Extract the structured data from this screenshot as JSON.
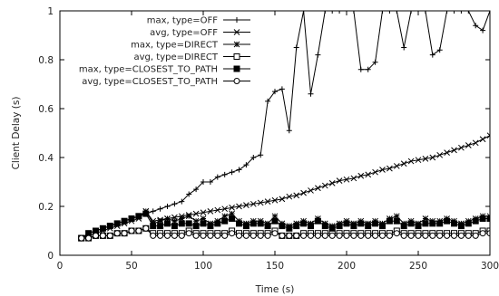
{
  "chart_data": {
    "type": "line",
    "title": "",
    "xlabel": "Time (s)",
    "ylabel": "Client Delay (s)",
    "xlim": [
      0,
      300
    ],
    "ylim": [
      0,
      1
    ],
    "x_ticks": [
      0,
      50,
      100,
      150,
      200,
      250,
      300
    ],
    "y_ticks": [
      0,
      0.2,
      0.4,
      0.6,
      0.8,
      1
    ],
    "x_tick_labels": [
      "0",
      "50",
      "100",
      "150",
      "200",
      "250",
      "300"
    ],
    "y_tick_labels": [
      "0",
      "0.2",
      "0.4",
      "0.6",
      "0.8",
      "1"
    ],
    "grid": false,
    "legend_position": "top-right",
    "series": [
      {
        "name": "max, type=OFF",
        "marker": "plus",
        "x": [
          15,
          20,
          25,
          30,
          35,
          40,
          45,
          50,
          55,
          60,
          65,
          70,
          75,
          80,
          85,
          90,
          95,
          100,
          105,
          110,
          115,
          120,
          125,
          130,
          135,
          140,
          145,
          150,
          155,
          160,
          165,
          170,
          175,
          180,
          185,
          190,
          195,
          200,
          205,
          210,
          215,
          220,
          225,
          230,
          235,
          240,
          245,
          250,
          255,
          260,
          265,
          270,
          275,
          280,
          285,
          290,
          295,
          300
        ],
        "y": [
          0.07,
          0.09,
          0.1,
          0.11,
          0.12,
          0.13,
          0.14,
          0.15,
          0.16,
          0.17,
          0.18,
          0.19,
          0.2,
          0.21,
          0.22,
          0.25,
          0.27,
          0.3,
          0.3,
          0.32,
          0.33,
          0.34,
          0.35,
          0.37,
          0.4,
          0.41,
          0.63,
          0.67,
          0.68,
          0.51,
          0.85,
          1.0,
          0.66,
          0.82,
          1.0,
          1.0,
          1.0,
          1.0,
          1.0,
          0.76,
          0.76,
          0.79,
          1.0,
          1.0,
          1.0,
          0.85,
          1.0,
          1.0,
          1.0,
          0.82,
          0.84,
          1.0,
          1.0,
          1.0,
          1.0,
          0.94,
          0.92,
          1.0
        ]
      },
      {
        "name": "avg, type=OFF",
        "marker": "cross",
        "x": [
          15,
          20,
          25,
          30,
          35,
          40,
          45,
          50,
          55,
          60,
          65,
          70,
          75,
          80,
          85,
          90,
          95,
          100,
          105,
          110,
          115,
          120,
          125,
          130,
          135,
          140,
          145,
          150,
          155,
          160,
          165,
          170,
          175,
          180,
          185,
          190,
          195,
          200,
          205,
          210,
          215,
          220,
          225,
          230,
          235,
          240,
          245,
          250,
          255,
          260,
          265,
          270,
          275,
          280,
          285,
          290,
          295,
          300
        ],
        "y": [
          0.07,
          0.08,
          0.09,
          0.1,
          0.11,
          0.12,
          0.13,
          0.14,
          0.15,
          0.18,
          0.14,
          0.145,
          0.15,
          0.155,
          0.16,
          0.165,
          0.17,
          0.175,
          0.18,
          0.185,
          0.19,
          0.195,
          0.2,
          0.205,
          0.21,
          0.215,
          0.22,
          0.225,
          0.23,
          0.24,
          0.245,
          0.255,
          0.265,
          0.275,
          0.285,
          0.295,
          0.305,
          0.31,
          0.315,
          0.325,
          0.33,
          0.34,
          0.35,
          0.355,
          0.365,
          0.375,
          0.385,
          0.39,
          0.395,
          0.4,
          0.41,
          0.42,
          0.43,
          0.44,
          0.45,
          0.46,
          0.475,
          0.49
        ]
      },
      {
        "name": "max, type=DIRECT",
        "marker": "star",
        "x": [
          15,
          20,
          25,
          30,
          35,
          40,
          45,
          50,
          55,
          60,
          65,
          70,
          75,
          80,
          85,
          90,
          95,
          100,
          105,
          110,
          115,
          120,
          125,
          130,
          135,
          140,
          145,
          150,
          155,
          160,
          165,
          170,
          175,
          180,
          185,
          190,
          195,
          200,
          205,
          210,
          215,
          220,
          225,
          230,
          235,
          240,
          245,
          250,
          255,
          260,
          265,
          270,
          275,
          280,
          285,
          290,
          295,
          300
        ],
        "y": [
          0.07,
          0.09,
          0.1,
          0.11,
          0.12,
          0.13,
          0.14,
          0.15,
          0.16,
          0.18,
          0.13,
          0.14,
          0.15,
          0.14,
          0.15,
          0.16,
          0.14,
          0.15,
          0.13,
          0.14,
          0.16,
          0.17,
          0.14,
          0.13,
          0.14,
          0.14,
          0.13,
          0.16,
          0.13,
          0.12,
          0.13,
          0.14,
          0.13,
          0.15,
          0.13,
          0.12,
          0.13,
          0.14,
          0.13,
          0.14,
          0.13,
          0.14,
          0.13,
          0.15,
          0.16,
          0.13,
          0.14,
          0.13,
          0.15,
          0.14,
          0.14,
          0.15,
          0.14,
          0.13,
          0.14,
          0.15,
          0.16,
          0.16
        ]
      },
      {
        "name": "avg, type=DIRECT",
        "marker": "square-open",
        "x": [
          15,
          20,
          25,
          30,
          35,
          40,
          45,
          50,
          55,
          60,
          65,
          70,
          75,
          80,
          85,
          90,
          95,
          100,
          105,
          110,
          115,
          120,
          125,
          130,
          135,
          140,
          145,
          150,
          155,
          160,
          165,
          170,
          175,
          180,
          185,
          190,
          195,
          200,
          205,
          210,
          215,
          220,
          225,
          230,
          235,
          240,
          245,
          250,
          255,
          260,
          265,
          270,
          275,
          280,
          285,
          290,
          295,
          300
        ],
        "y": [
          0.07,
          0.07,
          0.08,
          0.08,
          0.08,
          0.09,
          0.09,
          0.1,
          0.1,
          0.11,
          0.09,
          0.09,
          0.09,
          0.09,
          0.09,
          0.1,
          0.09,
          0.09,
          0.09,
          0.09,
          0.09,
          0.1,
          0.09,
          0.09,
          0.09,
          0.09,
          0.09,
          0.1,
          0.08,
          0.08,
          0.08,
          0.09,
          0.09,
          0.09,
          0.09,
          0.09,
          0.09,
          0.09,
          0.09,
          0.09,
          0.09,
          0.09,
          0.09,
          0.09,
          0.1,
          0.09,
          0.09,
          0.09,
          0.09,
          0.09,
          0.09,
          0.09,
          0.09,
          0.09,
          0.09,
          0.09,
          0.1,
          0.1
        ]
      },
      {
        "name": "max, type=CLOSEST_TO_PATH",
        "marker": "square-filled",
        "x": [
          15,
          20,
          25,
          30,
          35,
          40,
          45,
          50,
          55,
          60,
          65,
          70,
          75,
          80,
          85,
          90,
          95,
          100,
          105,
          110,
          115,
          120,
          125,
          130,
          135,
          140,
          145,
          150,
          155,
          160,
          165,
          170,
          175,
          180,
          185,
          190,
          195,
          200,
          205,
          210,
          215,
          220,
          225,
          230,
          235,
          240,
          245,
          250,
          255,
          260,
          265,
          270,
          275,
          280,
          285,
          290,
          295,
          300
        ],
        "y": [
          0.07,
          0.09,
          0.1,
          0.11,
          0.12,
          0.13,
          0.14,
          0.15,
          0.16,
          0.17,
          0.12,
          0.12,
          0.13,
          0.12,
          0.13,
          0.13,
          0.12,
          0.13,
          0.12,
          0.13,
          0.14,
          0.15,
          0.13,
          0.12,
          0.13,
          0.13,
          0.12,
          0.14,
          0.12,
          0.11,
          0.12,
          0.13,
          0.12,
          0.14,
          0.12,
          0.11,
          0.12,
          0.13,
          0.12,
          0.13,
          0.12,
          0.13,
          0.12,
          0.14,
          0.14,
          0.12,
          0.13,
          0.12,
          0.13,
          0.13,
          0.13,
          0.14,
          0.13,
          0.12,
          0.13,
          0.14,
          0.15,
          0.15
        ]
      },
      {
        "name": "avg, type=CLOSEST_TO_PATH",
        "marker": "circle-open",
        "x": [
          15,
          20,
          25,
          30,
          35,
          40,
          45,
          50,
          55,
          60,
          65,
          70,
          75,
          80,
          85,
          90,
          95,
          100,
          105,
          110,
          115,
          120,
          125,
          130,
          135,
          140,
          145,
          150,
          155,
          160,
          165,
          170,
          175,
          180,
          185,
          190,
          195,
          200,
          205,
          210,
          215,
          220,
          225,
          230,
          235,
          240,
          245,
          250,
          255,
          260,
          265,
          270,
          275,
          280,
          285,
          290,
          295,
          300
        ],
        "y": [
          0.07,
          0.07,
          0.08,
          0.08,
          0.08,
          0.09,
          0.09,
          0.1,
          0.1,
          0.11,
          0.08,
          0.08,
          0.08,
          0.08,
          0.08,
          0.09,
          0.08,
          0.08,
          0.08,
          0.08,
          0.08,
          0.09,
          0.08,
          0.08,
          0.08,
          0.08,
          0.08,
          0.09,
          0.08,
          0.08,
          0.08,
          0.08,
          0.08,
          0.08,
          0.08,
          0.08,
          0.08,
          0.08,
          0.08,
          0.08,
          0.08,
          0.08,
          0.08,
          0.08,
          0.09,
          0.08,
          0.08,
          0.08,
          0.08,
          0.08,
          0.08,
          0.08,
          0.08,
          0.08,
          0.08,
          0.08,
          0.09,
          0.09
        ]
      }
    ]
  }
}
